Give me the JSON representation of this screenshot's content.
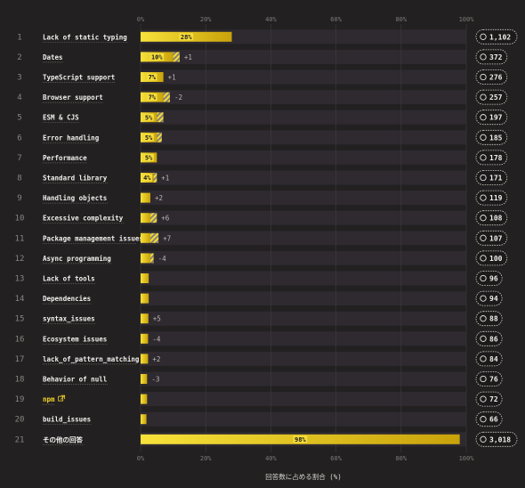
{
  "chart_data": {
    "type": "bar",
    "orientation": "horizontal",
    "xlabel": "回答数に占める割合 (%)",
    "xlim": [
      0,
      100
    ],
    "x_ticks": [
      "0%",
      "20%",
      "40%",
      "60%",
      "80%",
      "100%"
    ],
    "grid": true,
    "categories": [
      "Lack of static typing",
      "Dates",
      "TypeScript support",
      "Browser support",
      "ESM & CJS",
      "Error handling",
      "Performance",
      "Standard library",
      "Handling objects",
      "Excessive complexity",
      "Package management issues",
      "Async programming",
      "Lack of tools",
      "Dependencies",
      "syntax_issues",
      "Ecosystem issues",
      "lack_of_pattern_matching",
      "Behavior of null",
      "npm",
      "build_issues",
      "その他の回答"
    ],
    "ranks": [
      "1",
      "2",
      "3",
      "4",
      "5",
      "6",
      "7",
      "8",
      "9",
      "10",
      "11",
      "12",
      "13",
      "14",
      "15",
      "16",
      "17",
      "18",
      "19",
      "20",
      "21"
    ],
    "values": [
      28,
      10,
      7,
      7,
      5,
      5,
      5,
      4,
      3,
      3,
      3,
      3,
      2.5,
      2.5,
      2.4,
      2.3,
      2.3,
      2,
      2,
      1.8,
      98
    ],
    "new_portion": [
      0,
      2,
      0,
      2,
      2,
      1.5,
      0,
      1,
      0,
      2,
      2.5,
      1,
      0,
      0,
      0,
      0,
      0,
      0,
      0,
      0,
      0
    ],
    "value_labels": [
      "28%",
      "10%",
      "7%",
      "7%",
      "5%",
      "5%",
      "5%",
      "4%",
      "",
      "",
      "",
      "",
      "",
      "",
      "",
      "",
      "",
      "",
      "",
      "",
      "98%"
    ],
    "deltas": [
      "",
      "+1",
      "+1",
      "-2",
      "",
      "",
      "",
      "+1",
      "+2",
      "+6",
      "+7",
      "-4",
      "",
      "",
      "+5",
      "-4",
      "+2",
      "-3",
      "",
      "",
      ""
    ],
    "counts": [
      "1,102",
      "372",
      "276",
      "257",
      "197",
      "185",
      "178",
      "171",
      "119",
      "108",
      "107",
      "100",
      "96",
      "94",
      "88",
      "86",
      "84",
      "76",
      "72",
      "66",
      "3,018"
    ],
    "link_labels": [
      "npm"
    ],
    "colors": {
      "bar_start": "#f7e23a",
      "bar_end": "#c9a20a",
      "row_band": "#2e2a30",
      "background": "#232021",
      "grid": "#3f3b3d",
      "link": "#f3d32a"
    },
    "icons": {
      "count_badge": "circle-icon",
      "external_link": "external-link-icon"
    }
  }
}
